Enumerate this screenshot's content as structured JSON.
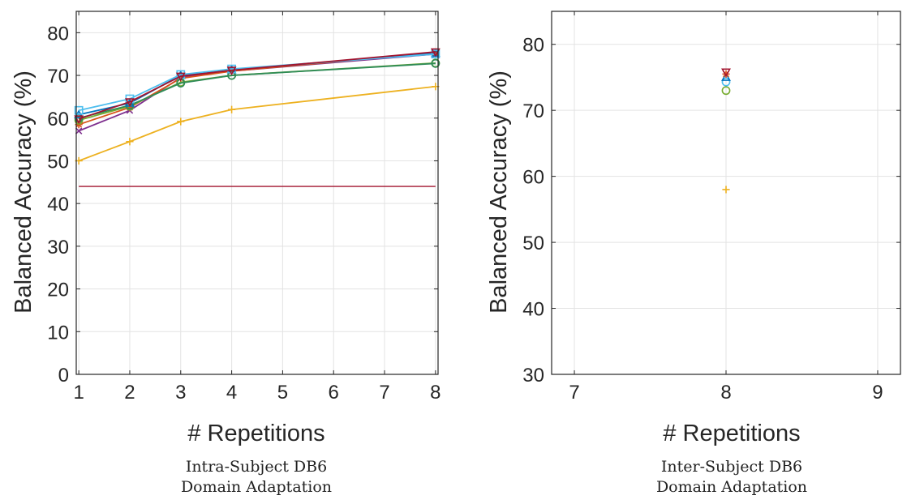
{
  "chart_data": [
    {
      "type": "line",
      "xlabel": "# Repetitions",
      "ylabel": "Balanced Accuracy (%)",
      "caption_line1": "Intra-Subject DB6",
      "caption_line2": "Domain Adaptation",
      "xlim": [
        0.95,
        8.05
      ],
      "ylim": [
        0,
        85
      ],
      "xticks": [
        1,
        2,
        3,
        4,
        5,
        6,
        7,
        8
      ],
      "yticks": [
        0,
        10,
        20,
        30,
        40,
        50,
        60,
        70,
        80
      ],
      "grid": true,
      "reference_line": {
        "value": 44,
        "color": "#a2142f"
      },
      "x": [
        1,
        2,
        3,
        4,
        8
      ],
      "series": [
        {
          "marker": "plus",
          "color": "#edb120",
          "values": [
            50.0,
            54.5,
            59.2,
            62.0,
            67.4
          ]
        },
        {
          "marker": "x",
          "color": "#7e2f8e",
          "values": [
            57.0,
            61.8,
            69.5,
            71.0,
            75.0
          ]
        },
        {
          "marker": "star",
          "color": "#d95319",
          "values": [
            58.5,
            62.5,
            69.3,
            71.0,
            75.3
          ]
        },
        {
          "marker": "circle",
          "color": "#77ac30",
          "values": [
            59.5,
            62.8,
            68.4,
            70.0,
            72.9
          ]
        },
        {
          "marker": "circle",
          "color": "#2e8b57",
          "values": [
            60.0,
            63.0,
            68.2,
            70.0,
            72.8
          ]
        },
        {
          "marker": "triangle",
          "color": "#0072bd",
          "values": [
            60.8,
            63.5,
            70.0,
            71.3,
            75.2
          ]
        },
        {
          "marker": "square",
          "color": "#4dbeee",
          "values": [
            61.8,
            64.5,
            70.2,
            71.5,
            75.0
          ]
        },
        {
          "marker": "triangle-down",
          "color": "#a2142f",
          "values": [
            59.8,
            63.8,
            69.8,
            71.2,
            75.5
          ]
        }
      ]
    },
    {
      "type": "scatter",
      "xlabel": "# Repetitions",
      "ylabel": "Balanced Accuracy (%)",
      "caption_line1": "Inter-Subject DB6",
      "caption_line2": "Domain Adaptation",
      "xlim": [
        6.85,
        9.15
      ],
      "ylim": [
        30,
        85
      ],
      "xticks": [
        7,
        8,
        9
      ],
      "yticks": [
        30,
        40,
        50,
        60,
        70,
        80
      ],
      "grid": true,
      "points": [
        {
          "x": 8,
          "y": 58.0,
          "marker": "plus",
          "color": "#edb120"
        },
        {
          "x": 8,
          "y": 73.0,
          "marker": "circle",
          "color": "#77ac30"
        },
        {
          "x": 8,
          "y": 74.3,
          "marker": "circle",
          "color": "#4dbeee"
        },
        {
          "x": 8,
          "y": 75.0,
          "marker": "triangle",
          "color": "#0072bd"
        },
        {
          "x": 8,
          "y": 75.5,
          "marker": "star",
          "color": "#d95319"
        },
        {
          "x": 8,
          "y": 75.8,
          "marker": "triangle-down",
          "color": "#a2142f"
        }
      ]
    }
  ]
}
